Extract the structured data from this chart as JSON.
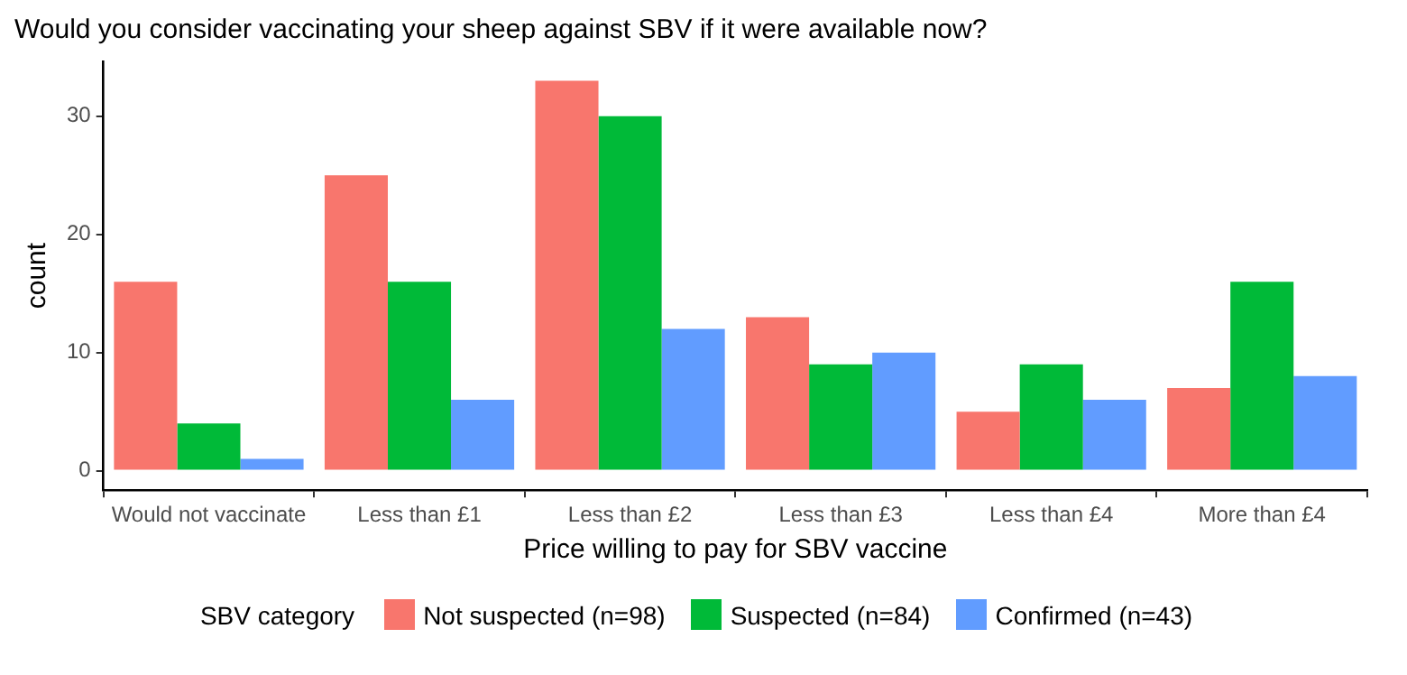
{
  "chart_data": {
    "type": "bar",
    "title": "Would you consider vaccinating your sheep against SBV if it were available now?",
    "xlabel": "Price willing to pay for SBV vaccine",
    "ylabel": "count",
    "legend_title": "SBV category",
    "categories": [
      "Would not vaccinate",
      "Less than £1",
      "Less than £2",
      "Less than £3",
      "Less than £4",
      "More than £4"
    ],
    "series": [
      {
        "name": "Not suspected (n=98)",
        "color": "#f8766d",
        "values": [
          16,
          25,
          33,
          13,
          5,
          7
        ]
      },
      {
        "name": "Suspected (n=84)",
        "color": "#00ba38",
        "values": [
          4,
          16,
          30,
          9,
          9,
          16
        ]
      },
      {
        "name": "Confirmed (n=43)",
        "color": "#619cff",
        "values": [
          1,
          6,
          12,
          10,
          6,
          8
        ]
      }
    ],
    "ylim": [
      -1.65,
      34.65
    ],
    "yticks": [
      0,
      10,
      20,
      30
    ],
    "grid": false,
    "legend": "bottom"
  }
}
